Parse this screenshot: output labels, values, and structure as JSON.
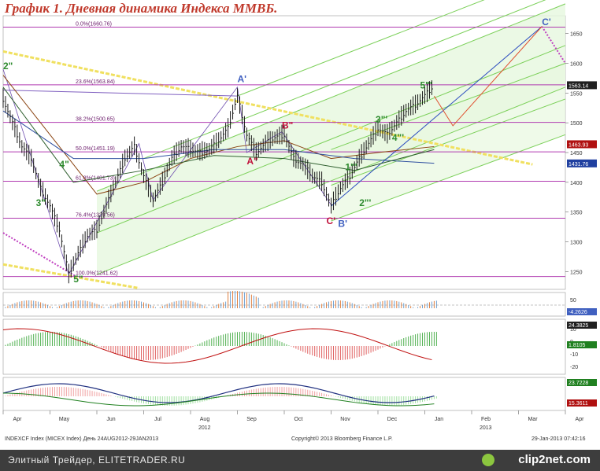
{
  "title": "График 1.   Дневная динамика Индекса ММВБ.",
  "footer": {
    "left": "INDEXCF Index (MICEX Index)  День 24AUG2012-29JAN2013",
    "mid": "Copyright© 2013 Bloomberg Finance L.P.",
    "right": "29-Jan-2013 07:42:16"
  },
  "banner": {
    "text": "Элитный Трейдер, ELITETRADER.RU",
    "logo": "clip2net.com"
  },
  "colors": {
    "fib_line": "#b03ab0",
    "channel": "#7cd05a",
    "channel_fill": "#e8f8e0",
    "trend_yellow": "#f0e060",
    "price_bars": "#1a1a1a",
    "ma_brown": "#8b4513",
    "ma_blue": "#3050a0",
    "label_green": "#2e8b2e",
    "label_red": "#c0103a",
    "label_blue": "#4060c0",
    "panel_bg": "#ffffff"
  },
  "chart_data": {
    "type": "line",
    "panels": [
      {
        "name": "price",
        "y_ticks": [
          1250,
          1300,
          1350,
          1400,
          1450,
          1500,
          1550,
          1600,
          1650
        ],
        "ylim": [
          1220,
          1680
        ],
        "price_points": [
          {
            "i": 0,
            "v": 1540
          },
          {
            "i": 4,
            "v": 1500
          },
          {
            "i": 8,
            "v": 1460
          },
          {
            "i": 12,
            "v": 1440
          },
          {
            "i": 16,
            "v": 1390
          },
          {
            "i": 20,
            "v": 1360
          },
          {
            "i": 24,
            "v": 1320
          },
          {
            "i": 28,
            "v": 1245
          },
          {
            "i": 32,
            "v": 1280
          },
          {
            "i": 36,
            "v": 1310
          },
          {
            "i": 40,
            "v": 1320
          },
          {
            "i": 44,
            "v": 1360
          },
          {
            "i": 48,
            "v": 1400
          },
          {
            "i": 52,
            "v": 1440
          },
          {
            "i": 56,
            "v": 1460
          },
          {
            "i": 60,
            "v": 1410
          },
          {
            "i": 64,
            "v": 1370
          },
          {
            "i": 68,
            "v": 1400
          },
          {
            "i": 72,
            "v": 1440
          },
          {
            "i": 76,
            "v": 1460
          },
          {
            "i": 80,
            "v": 1455
          },
          {
            "i": 84,
            "v": 1450
          },
          {
            "i": 88,
            "v": 1455
          },
          {
            "i": 92,
            "v": 1470
          },
          {
            "i": 96,
            "v": 1490
          },
          {
            "i": 100,
            "v": 1545
          },
          {
            "i": 104,
            "v": 1480
          },
          {
            "i": 108,
            "v": 1450
          },
          {
            "i": 112,
            "v": 1465
          },
          {
            "i": 116,
            "v": 1475
          },
          {
            "i": 120,
            "v": 1480
          },
          {
            "i": 124,
            "v": 1440
          },
          {
            "i": 128,
            "v": 1430
          },
          {
            "i": 132,
            "v": 1410
          },
          {
            "i": 136,
            "v": 1400
          },
          {
            "i": 140,
            "v": 1360
          },
          {
            "i": 144,
            "v": 1390
          },
          {
            "i": 148,
            "v": 1410
          },
          {
            "i": 152,
            "v": 1440
          },
          {
            "i": 156,
            "v": 1465
          },
          {
            "i": 160,
            "v": 1490
          },
          {
            "i": 164,
            "v": 1480
          },
          {
            "i": 168,
            "v": 1500
          },
          {
            "i": 172,
            "v": 1520
          },
          {
            "i": 176,
            "v": 1530
          },
          {
            "i": 180,
            "v": 1545
          },
          {
            "i": 184,
            "v": 1563
          }
        ],
        "fib_levels": [
          {
            "label": "0.0%(1660.76)",
            "value": 1660.76
          },
          {
            "label": "23.6%(1563.84)",
            "value": 1563.84
          },
          {
            "label": "38.2%(1500.65)",
            "value": 1500.65
          },
          {
            "label": "50.0%(1451.19)",
            "value": 1451.19
          },
          {
            "label": "61.8%(1401.73)",
            "value": 1401.73
          },
          {
            "label": "76.4%(1339.56)",
            "value": 1339.56
          },
          {
            "label": "100.0%(1241.62)",
            "value": 1241.62
          }
        ],
        "price_tags": [
          {
            "label": "1563.14",
            "value": 1563.14,
            "style": "dark"
          },
          {
            "label": "1463.93",
            "value": 1463.93,
            "style": "red"
          },
          {
            "label": "1431.76",
            "value": 1431.76,
            "style": "blue"
          }
        ],
        "wave_labels": [
          {
            "text": "2\"",
            "i": 0,
            "v": 1590,
            "color": "green"
          },
          {
            "text": "4\"",
            "i": 24,
            "v": 1425,
            "color": "green"
          },
          {
            "text": "3\"",
            "i": 14,
            "v": 1360,
            "color": "green"
          },
          {
            "text": "5\"",
            "i": 30,
            "v": 1232,
            "color": "green"
          },
          {
            "text": "A'",
            "i": 100,
            "v": 1568,
            "color": "blue"
          },
          {
            "text": "A\"",
            "i": 104,
            "v": 1430,
            "color": "red"
          },
          {
            "text": "B\"",
            "i": 119,
            "v": 1490,
            "color": "red"
          },
          {
            "text": "C'",
            "i": 138,
            "v": 1330,
            "color": "red"
          },
          {
            "text": "B'",
            "i": 143,
            "v": 1325,
            "color": "blue"
          },
          {
            "text": "1\"'",
            "i": 146,
            "v": 1420,
            "color": "green"
          },
          {
            "text": "2\"'",
            "i": 152,
            "v": 1360,
            "color": "green"
          },
          {
            "text": "3\"'",
            "i": 159,
            "v": 1500,
            "color": "green"
          },
          {
            "text": "4\"'",
            "i": 166,
            "v": 1470,
            "color": "green"
          },
          {
            "text": "5\"'",
            "i": 178,
            "v": 1558,
            "color": "green"
          },
          {
            "text": "C'",
            "i": 230,
            "v": 1664,
            "color": "blue"
          }
        ]
      },
      {
        "name": "indicator1",
        "y_ticks": [
          50
        ],
        "tags": [
          "-4.2626"
        ]
      },
      {
        "name": "indicator2",
        "y_ticks": [
          10,
          0,
          -10,
          -20
        ],
        "tags": [
          "24.3825",
          "1.8105"
        ]
      },
      {
        "name": "indicator3",
        "y_ticks": [],
        "tags": [
          "23.7228",
          "15.3611"
        ]
      }
    ],
    "x_ticks": [
      "Apr",
      "May",
      "Jun",
      "Jul",
      "Aug",
      "Sep",
      "Oct",
      "Nov",
      "Dec",
      "Jan",
      "Feb",
      "Mar",
      "Apr"
    ],
    "x_year_labels": [
      {
        "text": "2012",
        "after": "Aug"
      },
      {
        "text": "2013",
        "after": "Feb"
      }
    ],
    "x_range_bars": [
      0,
      240
    ]
  }
}
